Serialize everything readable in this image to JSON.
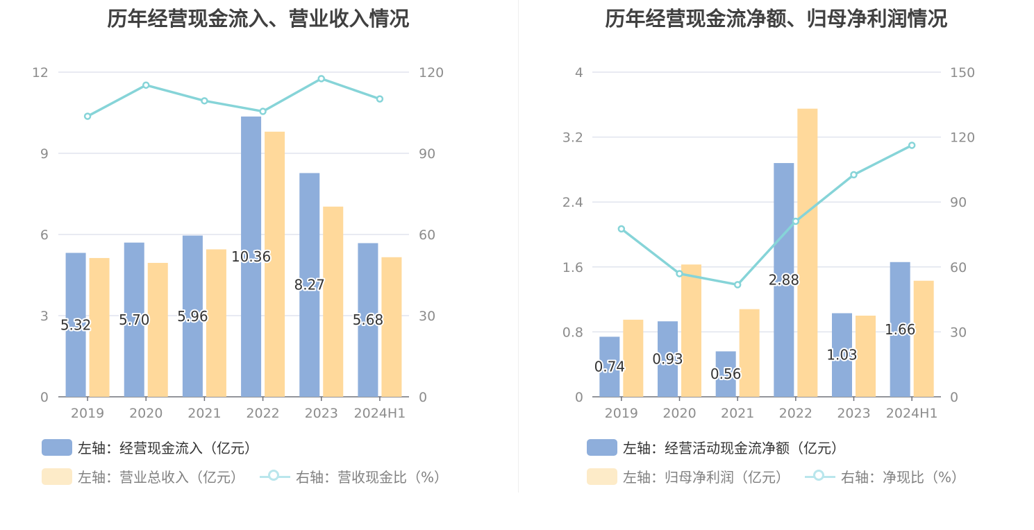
{
  "charts": [
    {
      "title": "历年经营现金流入、营业收入情况",
      "legend": {
        "bar1": "左轴：经营现金流入（亿元）",
        "bar2": "左轴：营业总收入（亿元）",
        "line": "右轴：营收现金比（%）"
      }
    },
    {
      "title": "历年经营现金流净额、归母净利润情况",
      "legend": {
        "bar1": "左轴：经营活动现金流净额（亿元）",
        "bar2": "左轴：归母净利润（亿元）",
        "line": "右轴：净现比（%）"
      }
    }
  ],
  "colors": {
    "bar1": "#8eaedb",
    "bar2": "#ffd99b",
    "line": "#86d4d8",
    "legend_bar2": "#fdebc8",
    "legend_line": "#b9e6ec",
    "axis_text": "#8c8c8c",
    "grid": "#e0e4ee"
  },
  "chart_data": [
    {
      "type": "bar",
      "categories": [
        "2019",
        "2020",
        "2021",
        "2022",
        "2023",
        "2024H1"
      ],
      "left_axis": {
        "ticks": [
          "0",
          "3",
          "6",
          "9",
          "12"
        ],
        "ylim": [
          0,
          12
        ]
      },
      "right_axis": {
        "ticks": [
          "0",
          "30",
          "60",
          "90",
          "120"
        ],
        "ylim": [
          0,
          120
        ]
      },
      "series": [
        {
          "name": "左轴：经营现金流入（亿元）",
          "axis": "left",
          "kind": "bar",
          "values": [
            5.32,
            5.7,
            5.96,
            10.36,
            8.27,
            5.68
          ],
          "labels": [
            "5.32",
            "5.70",
            "5.96",
            "10.36",
            "8.27",
            "5.68"
          ]
        },
        {
          "name": "左轴：营业总收入（亿元）",
          "axis": "left",
          "kind": "bar",
          "values": [
            5.13,
            4.95,
            5.45,
            9.8,
            7.03,
            5.16
          ]
        },
        {
          "name": "右轴：营收现金比（%）",
          "axis": "right",
          "kind": "line",
          "values": [
            103.7,
            115.2,
            109.4,
            105.5,
            117.6,
            110.1
          ]
        }
      ]
    },
    {
      "type": "bar",
      "categories": [
        "2019",
        "2020",
        "2021",
        "2022",
        "2023",
        "2024H1"
      ],
      "left_axis": {
        "ticks": [
          "0",
          "0.8",
          "1.6",
          "2.4",
          "3.2",
          "4"
        ],
        "ylim": [
          0,
          4
        ]
      },
      "right_axis": {
        "ticks": [
          "0",
          "30",
          "60",
          "90",
          "120",
          "150"
        ],
        "ylim": [
          0,
          150
        ]
      },
      "series": [
        {
          "name": "左轴：经营活动现金流净额（亿元）",
          "axis": "left",
          "kind": "bar",
          "values": [
            0.74,
            0.93,
            0.56,
            2.88,
            1.03,
            1.66
          ],
          "labels": [
            "0.74",
            "0.93",
            "0.56",
            "2.88",
            "1.03",
            "1.66"
          ]
        },
        {
          "name": "左轴：归母净利润（亿元）",
          "axis": "left",
          "kind": "bar",
          "values": [
            0.95,
            1.63,
            1.08,
            3.55,
            1.0,
            1.43
          ]
        },
        {
          "name": "右轴：净现比（%）",
          "axis": "right",
          "kind": "line",
          "values": [
            77.6,
            56.9,
            51.8,
            81.1,
            102.6,
            116.2
          ]
        }
      ]
    }
  ]
}
